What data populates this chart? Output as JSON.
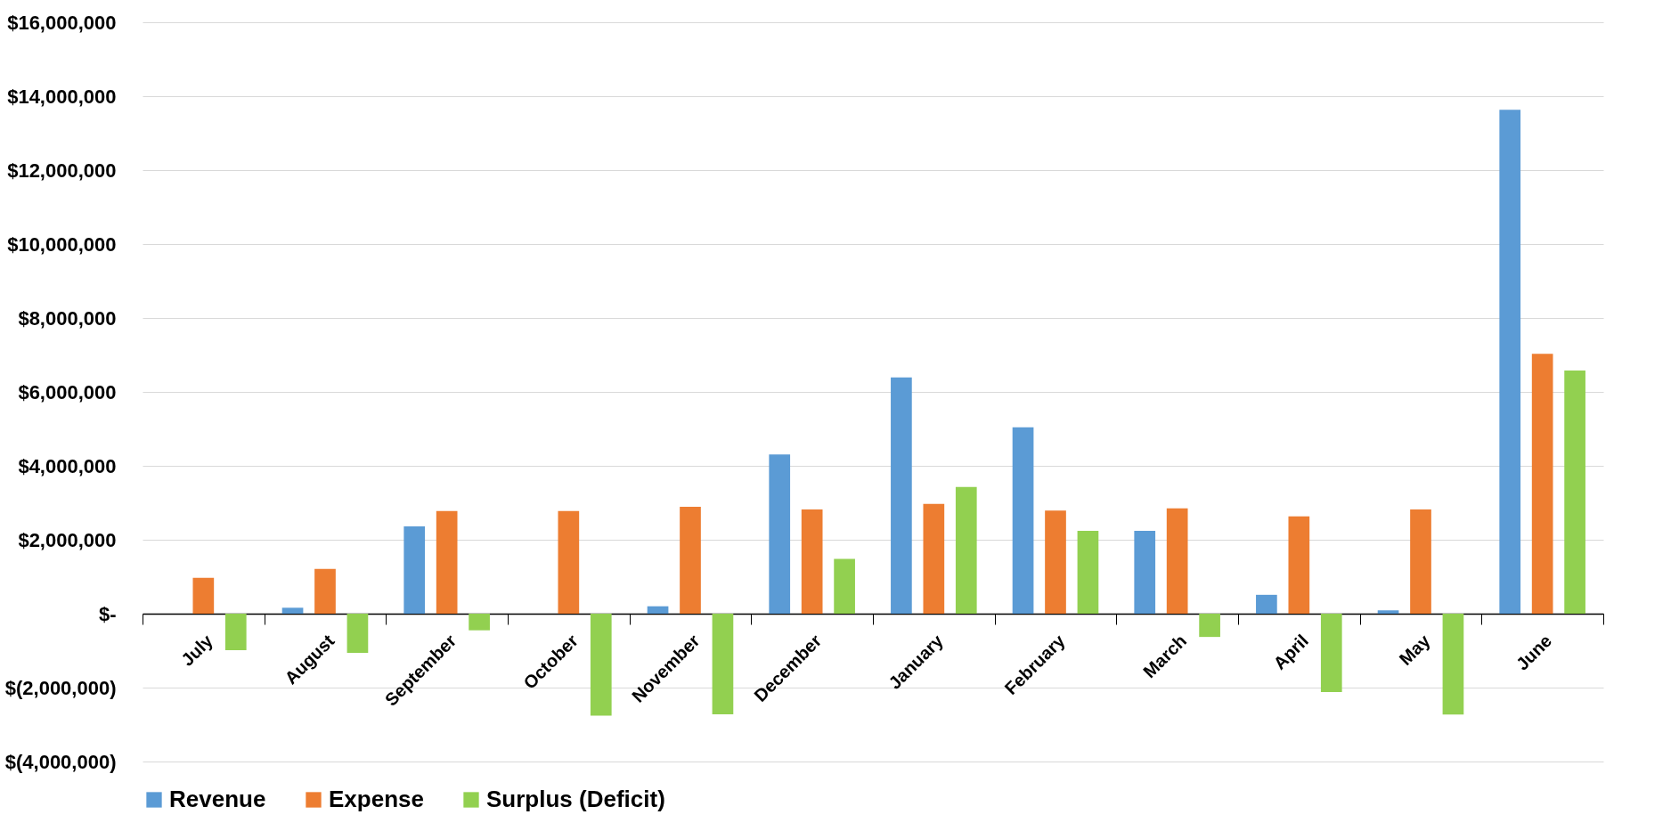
{
  "chart_data": {
    "type": "bar",
    "categories": [
      "July",
      "August",
      "September",
      "October",
      "November",
      "December",
      "January",
      "February",
      "March",
      "April",
      "May",
      "June"
    ],
    "series": [
      {
        "name": "Revenue",
        "color": "#5b9bd5",
        "values": [
          0,
          160000,
          2360000,
          0,
          200000,
          4310000,
          6390000,
          5040000,
          2240000,
          510000,
          90000,
          13630000
        ]
      },
      {
        "name": "Expense",
        "color": "#ed7d31",
        "values": [
          970000,
          1210000,
          2780000,
          2780000,
          2890000,
          2820000,
          2970000,
          2790000,
          2850000,
          2630000,
          2820000,
          7030000
        ]
      },
      {
        "name": "Surplus (Deficit)",
        "color": "#92d050",
        "values": [
          -990000,
          -1060000,
          -450000,
          -2760000,
          -2720000,
          1480000,
          3430000,
          2240000,
          -630000,
          -2120000,
          -2730000,
          6580000
        ]
      }
    ],
    "ylim": [
      -4000000,
      16000000
    ],
    "yticks": [
      {
        "value": -4000000,
        "label": "$(4,000,000)"
      },
      {
        "value": -2000000,
        "label": "$(2,000,000)"
      },
      {
        "value": 0,
        "label": "$-"
      },
      {
        "value": 2000000,
        "label": "$2,000,000"
      },
      {
        "value": 4000000,
        "label": "$4,000,000"
      },
      {
        "value": 6000000,
        "label": "$6,000,000"
      },
      {
        "value": 8000000,
        "label": "$8,000,000"
      },
      {
        "value": 10000000,
        "label": "$10,000,000"
      },
      {
        "value": 12000000,
        "label": "$12,000,000"
      },
      {
        "value": 14000000,
        "label": "$14,000,000"
      },
      {
        "value": 16000000,
        "label": "$16,000,000"
      }
    ],
    "grid": "y",
    "legend": "bottom"
  }
}
